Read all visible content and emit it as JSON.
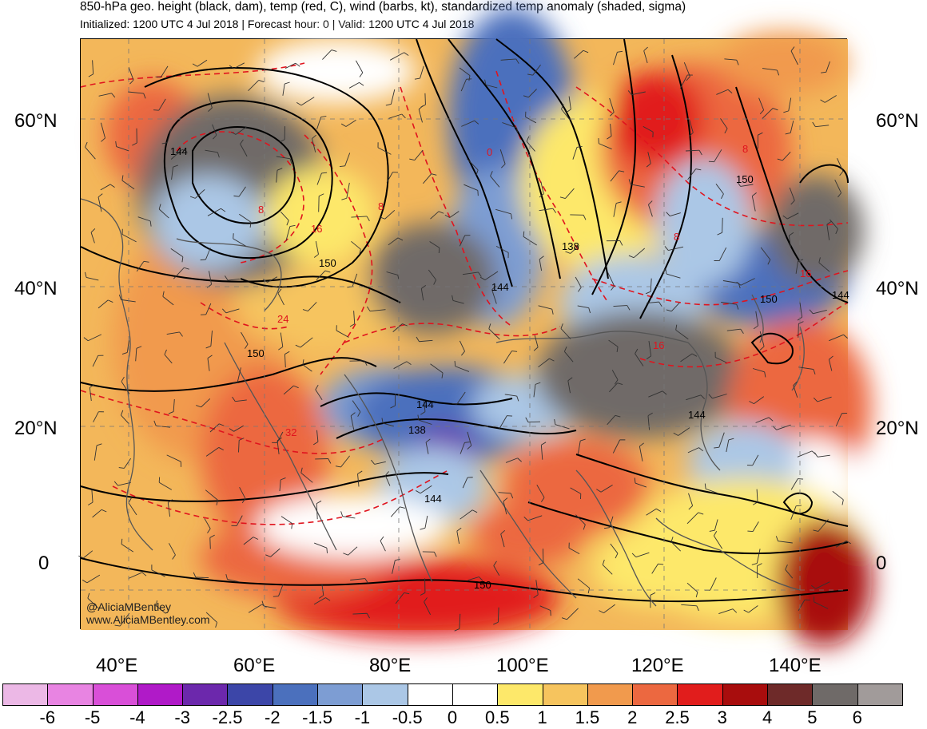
{
  "header": {
    "title": "850-hPa geo. height (black, dam), temp (red, C), wind (barbs, kt), standardized temp anomaly (shaded, sigma)",
    "subtitle": "Initialized: 1200 UTC 4 Jul 2018 | Forecast hour: 0 | Valid: 1200 UTC 4 Jul 2018"
  },
  "map": {
    "lat_labels": [
      "60°N",
      "40°N",
      "20°N",
      "0"
    ],
    "lon_labels": [
      "40°E",
      "60°E",
      "80°E",
      "100°E",
      "120°E",
      "140°E"
    ],
    "height_contour_labels": [
      "144",
      "150",
      "150",
      "138",
      "144",
      "144",
      "150",
      "144",
      "138",
      "144",
      "150",
      "150",
      "144"
    ],
    "temp_contour_labels": [
      "8",
      "16",
      "8",
      "0",
      "8",
      "16",
      "24",
      "32",
      "8",
      "16"
    ],
    "credits": [
      "@AliciaMBentley",
      "www.AliciaMBentley.com"
    ],
    "colors": {
      "land_outline": "#555555",
      "height_contour": "#000000",
      "temp_contour": "#e0141e"
    }
  },
  "legend": {
    "colors": [
      "#ecb8e6",
      "#e884e2",
      "#d94fd8",
      "#b01ac8",
      "#6c28ac",
      "#3c46a8",
      "#4b70bd",
      "#7d9dd3",
      "#abc7e6",
      "#ffffff",
      "#ffffff",
      "#fde86a",
      "#f6c45e",
      "#f19a4d",
      "#ec6840",
      "#e11d1c",
      "#a80d0d",
      "#6e2a29",
      "#6f6a68",
      "#a19b9a"
    ],
    "ticks": [
      "-6",
      "-5",
      "-4",
      "-3",
      "-2.5",
      "-2",
      "-1.5",
      "-1",
      "-0.5",
      "0",
      "0.5",
      "1",
      "1.5",
      "2",
      "2.5",
      "3",
      "4",
      "5",
      "6"
    ]
  }
}
